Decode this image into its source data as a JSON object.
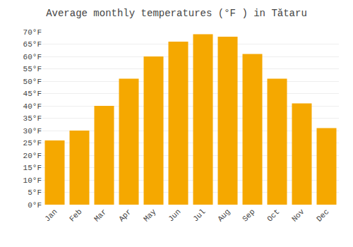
{
  "chart_data": {
    "type": "bar",
    "title": "Average monthly temperatures (°F ) in Tătaru",
    "categories": [
      "Jan",
      "Feb",
      "Mar",
      "Apr",
      "May",
      "Jun",
      "Jul",
      "Aug",
      "Sep",
      "Oct",
      "Nov",
      "Dec"
    ],
    "values": [
      26,
      30,
      40,
      51,
      60,
      66,
      69,
      68,
      61,
      51,
      41,
      31
    ],
    "color": "#F5A800",
    "ylim": [
      0,
      70
    ],
    "yticks": [
      {
        "value": 0,
        "label": "0°F"
      },
      {
        "value": 5,
        "label": "5°F"
      },
      {
        "value": 10,
        "label": "10°F"
      },
      {
        "value": 15,
        "label": "15°F"
      },
      {
        "value": 20,
        "label": "20°F"
      },
      {
        "value": 25,
        "label": "25°F"
      },
      {
        "value": 30,
        "label": "30°F"
      },
      {
        "value": 35,
        "label": "35°F"
      },
      {
        "value": 40,
        "label": "40°F"
      },
      {
        "value": 45,
        "label": "45°F"
      },
      {
        "value": 50,
        "label": "50°F"
      },
      {
        "value": 55,
        "label": "55°F"
      },
      {
        "value": 60,
        "label": "60°F"
      },
      {
        "value": 65,
        "label": "65°F"
      },
      {
        "value": 70,
        "label": "70°F"
      }
    ],
    "grid": true
  }
}
